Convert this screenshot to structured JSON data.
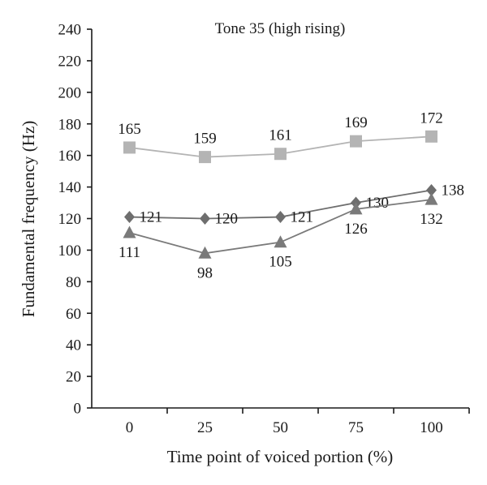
{
  "chart_data": {
    "type": "line",
    "title": "Tone 35 (high rising)",
    "xlabel": "Time point of voiced portion (%)",
    "ylabel": "Fundamental frequency (Hz)",
    "x": [
      0,
      25,
      50,
      75,
      100
    ],
    "x_tick_labels": [
      "0",
      "25",
      "50",
      "75",
      "100"
    ],
    "ylim": [
      0,
      240
    ],
    "y_ticks": [
      0,
      20,
      40,
      60,
      80,
      100,
      120,
      140,
      160,
      180,
      200,
      220,
      240
    ],
    "y_tick_labels": [
      "0",
      "20",
      "40",
      "60",
      "80",
      "100",
      "120",
      "140",
      "160",
      "180",
      "200",
      "220",
      "240"
    ],
    "grid": false,
    "legend": "none",
    "series": [
      {
        "marker": "square",
        "color": "#b4b4b4",
        "values": [
          165,
          159,
          161,
          169,
          172
        ],
        "labels": [
          "165",
          "159",
          "161",
          "169",
          "172"
        ],
        "label_position": "above"
      },
      {
        "marker": "diamond",
        "color": "#6e6e6e",
        "values": [
          121,
          120,
          121,
          130,
          138
        ],
        "labels": [
          "121",
          "120",
          "121",
          "130",
          "138"
        ],
        "label_position": "right"
      },
      {
        "marker": "triangle",
        "color": "#7a7a7a",
        "values": [
          111,
          98,
          105,
          126,
          132
        ],
        "labels": [
          "111",
          "98",
          "105",
          "126",
          "132"
        ],
        "label_position": "below"
      }
    ]
  }
}
